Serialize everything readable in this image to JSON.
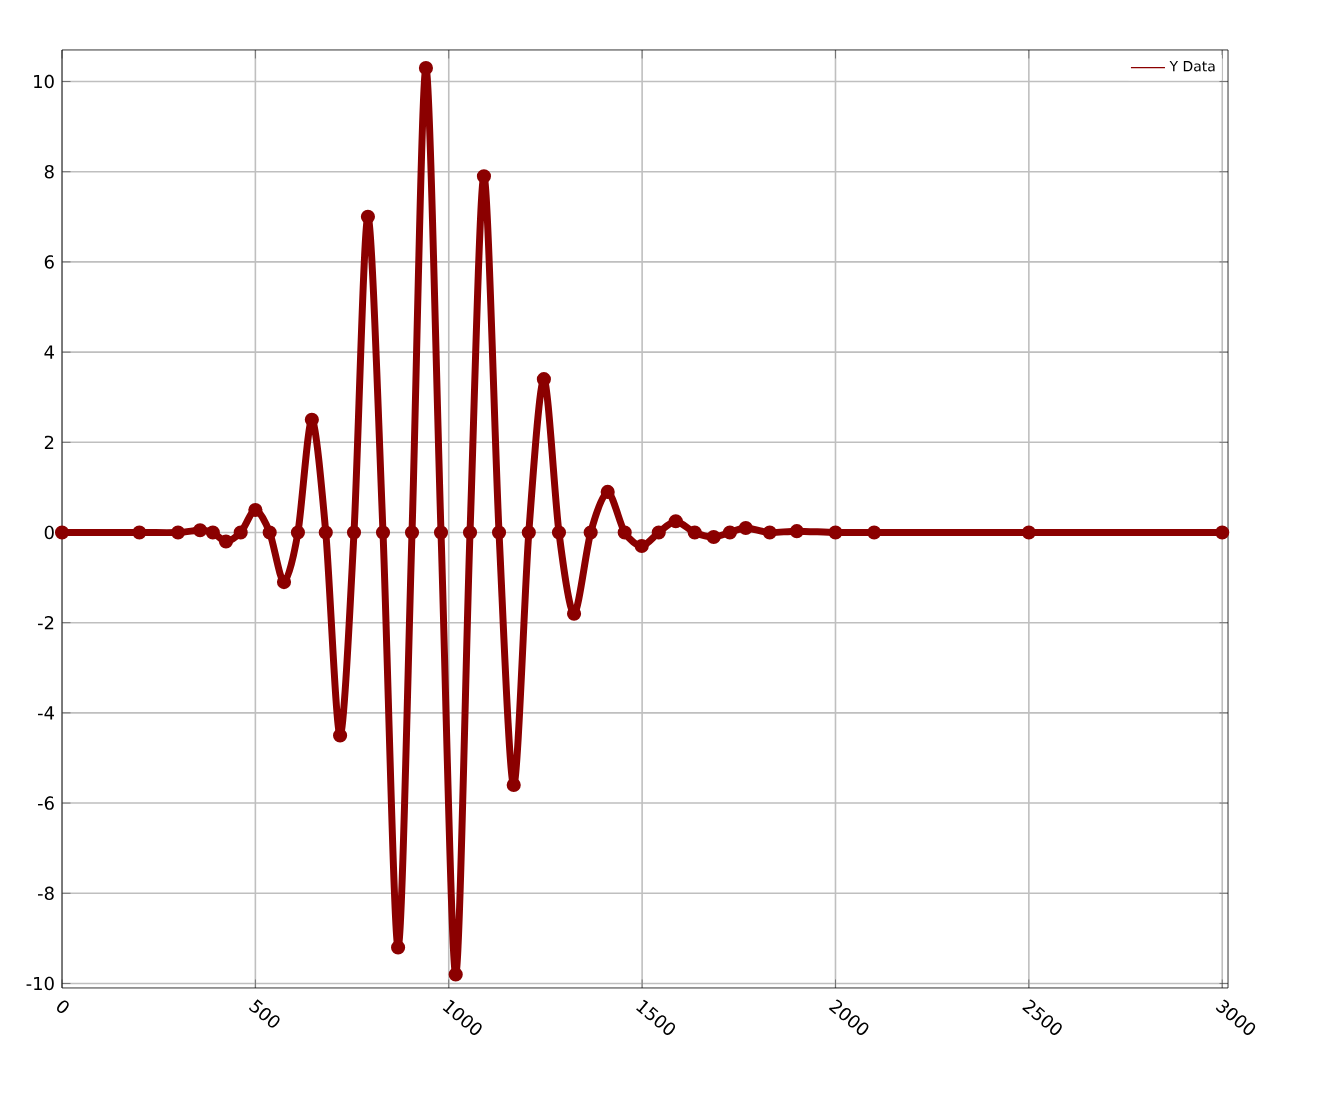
{
  "chart_data": {
    "type": "line",
    "x": [
      0,
      200,
      300,
      357,
      390,
      424,
      462,
      500,
      537,
      574,
      610,
      646,
      682,
      719,
      755,
      791,
      830,
      869,
      905,
      941,
      980,
      1018,
      1055,
      1091,
      1130,
      1168,
      1207,
      1246,
      1285,
      1324,
      1367,
      1411,
      1455,
      1499,
      1543,
      1587,
      1636,
      1685,
      1727,
      1768,
      1830,
      1900,
      2000,
      2100,
      2500,
      3000
    ],
    "series": [
      {
        "name": "Y Data",
        "color": "#8b0000",
        "values": [
          0,
          0,
          0,
          0.05,
          0,
          -0.2,
          0,
          0.5,
          0,
          -1.1,
          0,
          2.5,
          0,
          -4.5,
          0,
          7.0,
          0,
          -9.2,
          0,
          10.3,
          0,
          -9.8,
          0,
          7.9,
          0,
          -5.6,
          0,
          3.4,
          0,
          -1.8,
          0,
          0.9,
          0,
          -0.3,
          0,
          0.25,
          0,
          -0.1,
          0,
          0.1,
          0,
          0.03,
          0,
          0,
          0,
          0
        ]
      }
    ],
    "xlim": [
      0,
      3015
    ],
    "ylim": [
      -10.1,
      10.7
    ],
    "xticks": [
      0,
      500,
      1000,
      1500,
      2000,
      2500,
      3000
    ],
    "yticks": [
      -10,
      -8,
      -6,
      -4,
      -2,
      0,
      2,
      4,
      6,
      8,
      10
    ],
    "grid": true,
    "legend": "top right",
    "marker": "circle",
    "line_style": "solid"
  }
}
